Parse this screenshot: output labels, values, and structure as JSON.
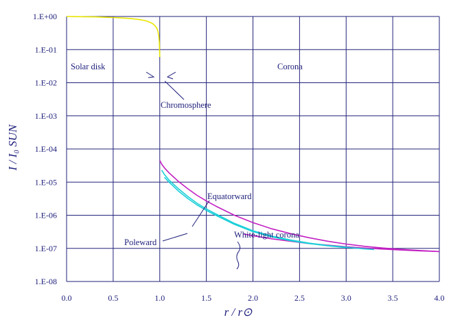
{
  "chart_data": {
    "type": "line",
    "title": "",
    "xlabel": "r / r⊙",
    "ylabel": "I / I₀ SUN",
    "xlim": [
      0.0,
      4.0
    ],
    "ylim_log10": [
      -8,
      0
    ],
    "y_scale": "log",
    "grid": true,
    "x_ticks": [
      "0.0",
      "0.5",
      "1.0",
      "1.5",
      "2.0",
      "2.5",
      "3.0",
      "3.5",
      "4.0"
    ],
    "y_ticks": [
      "1.E+00",
      "1.E-01",
      "1.E-02",
      "1.E-03",
      "1.E-04",
      "1.E-05",
      "1.E-06",
      "1.E-07",
      "1.E-08"
    ],
    "annotations": {
      "solar_disk": "Solar disk",
      "corona": "Corona",
      "chromosphere": "Chromosphere",
      "equatorward": "Equatorward",
      "poleward": "Poleward",
      "white_light_corona": "White-light corona"
    },
    "series": [
      {
        "color": "#e8e600",
        "x": [
          0.0,
          0.1,
          0.2,
          0.3,
          0.4,
          0.5,
          0.6,
          0.7,
          0.75,
          0.8,
          0.85,
          0.9,
          0.93,
          0.95,
          0.97,
          0.98,
          0.99,
          0.995,
          1.0
        ],
        "y": [
          1.0,
          0.99,
          0.98,
          0.97,
          0.95,
          0.93,
          0.9,
          0.86,
          0.83,
          0.79,
          0.74,
          0.66,
          0.59,
          0.52,
          0.43,
          0.36,
          0.25,
          0.17,
          0.06
        ]
      },
      {
        "color": "#c21fc2",
        "x": [
          1.0,
          1.02,
          1.05,
          1.1,
          1.2,
          1.3,
          1.4,
          1.5,
          1.6,
          1.8,
          2.0,
          2.2,
          2.4,
          2.6,
          2.8,
          3.0,
          3.2,
          3.4,
          3.6,
          3.8,
          4.0
        ],
        "y": [
          4.5e-05,
          3.5e-05,
          2.7e-05,
          1.9e-05,
          1.05e-05,
          6.3e-06,
          4e-06,
          2.7e-06,
          1.9e-06,
          1e-06,
          6e-07,
          3.9e-07,
          2.8e-07,
          2.1e-07,
          1.65e-07,
          1.35e-07,
          1.15e-07,
          1.02e-07,
          9.3e-08,
          8.6e-08,
          8e-08
        ]
      },
      {
        "color": "#c21fc2",
        "x": [
          1.9,
          2.0,
          2.2,
          2.4,
          2.6,
          2.8,
          3.0,
          3.2,
          3.4,
          3.6,
          3.8,
          4.0
        ],
        "y": [
          2.7e-07,
          2.4e-07,
          1.95e-07,
          1.65e-07,
          1.4e-07,
          1.25e-07,
          1.12e-07,
          1.02e-07,
          9.5e-08,
          8.9e-08,
          8.4e-08,
          8e-08
        ]
      },
      {
        "color": "#19cfd8",
        "x": [
          1.02,
          1.05,
          1.1,
          1.2,
          1.3,
          1.4,
          1.5,
          1.6,
          1.8,
          2.0,
          2.2,
          2.4,
          2.6,
          2.8,
          3.0,
          3.2,
          3.3
        ],
        "y": [
          2.3e-05,
          1.7e-05,
          1.15e-05,
          6.3e-06,
          3.7e-06,
          2.3e-06,
          1.55e-06,
          1.1e-06,
          5.7e-07,
          3.4e-07,
          2.35e-07,
          1.8e-07,
          1.45e-07,
          1.22e-07,
          1.08e-07,
          9.6e-08,
          9.2e-08
        ]
      },
      {
        "color": "#19cfd8",
        "x": [
          1.05,
          1.1,
          1.2,
          1.3,
          1.4,
          1.5,
          1.6,
          1.8,
          2.0,
          2.2,
          2.4,
          2.6,
          2.8,
          3.0
        ],
        "y": [
          1.4e-05,
          1e-05,
          5.4e-06,
          3.2e-06,
          2.05e-06,
          1.4e-06,
          1e-06,
          5.3e-07,
          3.2e-07,
          2.25e-07,
          1.7e-07,
          1.4e-07,
          1.2e-07,
          1.05e-07
        ]
      }
    ]
  }
}
